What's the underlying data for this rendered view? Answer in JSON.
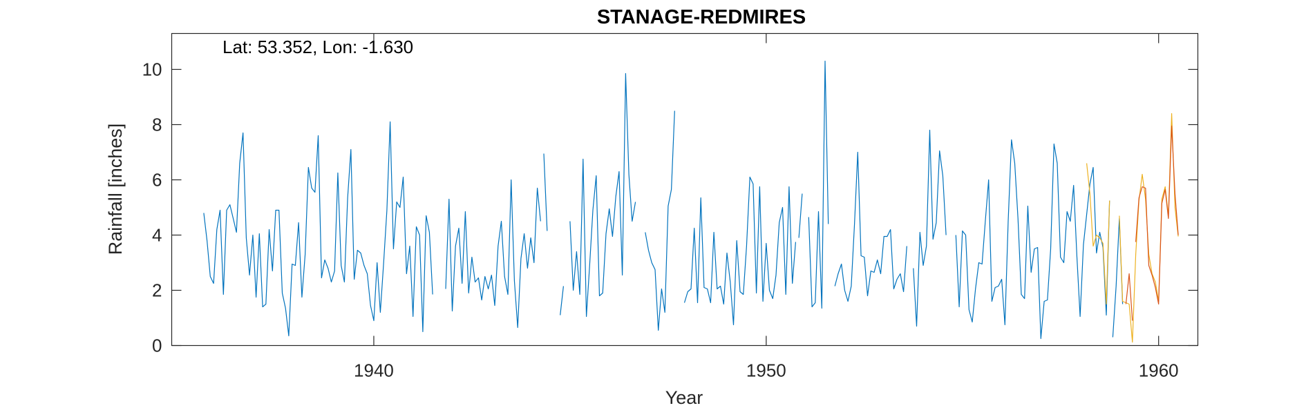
{
  "chart_data": {
    "type": "line",
    "title": "STANAGE-REDMIRES",
    "annotation": "Lat: 53.352, Lon: -1.630",
    "xlabel": "Year",
    "ylabel": "Rainfall [inches]",
    "xlim": [
      1934.85,
      1961.0
    ],
    "ylim": [
      0,
      11.3
    ],
    "xticks": [
      1940,
      1950,
      1960
    ],
    "yticks": [
      0,
      2,
      4,
      6,
      8,
      10
    ],
    "grid": false,
    "colors": {
      "observed": "#0072BD",
      "yellow": "#EDB120",
      "orange": "#D95319"
    },
    "series": [
      {
        "color": "#0072BD",
        "segments": [
          {
            "x": [
              1935.667,
              1935.75,
              1935.833,
              1935.917,
              1936.0,
              1936.083,
              1936.167,
              1936.25,
              1936.333,
              1936.417,
              1936.5,
              1936.583,
              1936.667,
              1936.75,
              1936.833,
              1936.917,
              1937.0,
              1937.083,
              1937.167,
              1937.25,
              1937.333,
              1937.417,
              1937.5,
              1937.583,
              1937.667,
              1937.75,
              1937.833,
              1937.917,
              1938.0,
              1938.083,
              1938.167,
              1938.25,
              1938.333,
              1938.417,
              1938.5,
              1938.583,
              1938.667,
              1938.75,
              1938.833,
              1938.917,
              1939.0,
              1939.083,
              1939.167,
              1939.25,
              1939.333,
              1939.417,
              1939.5,
              1939.583,
              1939.667,
              1939.75,
              1939.833,
              1939.917,
              1940.0,
              1940.083,
              1940.167,
              1940.25,
              1940.333,
              1940.417,
              1940.5,
              1940.583,
              1940.667,
              1940.75,
              1940.833,
              1940.917,
              1941.0,
              1941.083,
              1941.167,
              1941.25,
              1941.333,
              1941.417,
              1941.5
            ],
            "y": [
              4.8,
              3.8,
              2.5,
              2.25,
              4.2,
              4.9,
              1.85,
              4.9,
              5.1,
              4.6,
              4.1,
              6.6,
              7.7,
              3.9,
              2.55,
              4.0,
              1.75,
              4.05,
              1.4,
              1.5,
              4.2,
              2.7,
              4.9,
              4.9,
              1.9,
              1.35,
              0.35,
              2.95,
              2.9,
              4.45,
              1.75,
              3.3,
              6.45,
              5.7,
              5.55,
              7.6,
              2.45,
              3.1,
              2.8,
              2.3,
              2.7,
              6.25,
              2.9,
              2.3,
              5.35,
              7.1,
              2.4,
              3.45,
              3.35,
              2.9,
              2.6,
              1.45,
              0.9,
              3.0,
              1.2,
              3.0,
              4.9,
              8.1,
              3.5,
              5.2,
              5.0,
              6.1,
              2.6,
              3.6,
              1.05,
              4.3,
              4.0,
              0.5,
              4.7,
              4.1,
              1.85
            ]
          },
          {
            "x": [
              1941.833,
              1941.917,
              1942.0,
              1942.083,
              1942.167,
              1942.25,
              1942.333,
              1942.417,
              1942.5,
              1942.583,
              1942.667,
              1942.75,
              1942.833,
              1942.917,
              1943.0,
              1943.083,
              1943.167,
              1943.25,
              1943.333,
              1943.417,
              1943.5,
              1943.583,
              1943.667,
              1943.75,
              1943.833,
              1943.917,
              1944.0,
              1944.083,
              1944.167,
              1944.25
            ],
            "y": [
              2.05,
              5.3,
              1.25,
              3.6,
              4.25,
              2.25,
              4.85,
              1.9,
              3.2,
              2.3,
              2.45,
              1.65,
              2.5,
              2.05,
              2.55,
              1.45,
              3.6,
              4.5,
              2.5,
              1.85,
              6.0,
              2.35,
              0.65,
              3.15,
              4.05,
              2.8,
              3.9,
              3.0,
              5.7,
              4.5
            ]
          },
          {
            "x": [
              1944.333,
              1944.417
            ],
            "y": [
              6.95,
              4.15
            ]
          },
          {
            "x": [
              1944.75,
              1944.833
            ],
            "y": [
              1.1,
              2.15
            ]
          },
          {
            "x": [
              1945.0,
              1945.083,
              1945.167,
              1945.25,
              1945.333,
              1945.417,
              1945.5,
              1945.583,
              1945.667,
              1945.75,
              1945.833,
              1945.917,
              1946.0,
              1946.083,
              1946.167,
              1946.25,
              1946.333,
              1946.417,
              1946.5,
              1946.583,
              1946.667
            ],
            "y": [
              4.5,
              2.0,
              3.4,
              1.85,
              6.75,
              1.05,
              2.9,
              4.9,
              6.15,
              1.8,
              1.9,
              4.05,
              4.95,
              3.95,
              5.4,
              6.3,
              2.55,
              9.85,
              6.2,
              4.5,
              5.2
            ]
          },
          {
            "x": [
              1946.917,
              1947.0,
              1947.083,
              1947.167,
              1947.25,
              1947.333,
              1947.417,
              1947.5,
              1947.583,
              1947.667,
              1947.75
            ],
            "y": [
              4.1,
              3.45,
              3.0,
              2.75,
              0.55,
              2.05,
              1.2,
              5.05,
              5.65,
              8.5,
              null
            ]
          },
          {
            "x": [
              1947.917,
              1948.0,
              1948.083,
              1948.167,
              1948.25,
              1948.333,
              1948.417,
              1948.5,
              1948.583,
              1948.667,
              1948.75,
              1948.833,
              1948.917,
              1949.0,
              1949.083,
              1949.167,
              1949.25,
              1949.333,
              1949.417,
              1949.5,
              1949.583,
              1949.667,
              1949.75,
              1949.833,
              1949.917,
              1950.0,
              1950.083,
              1950.167,
              1950.25,
              1950.333,
              1950.417,
              1950.5,
              1950.583,
              1950.667,
              1950.75
            ],
            "y": [
              1.55,
              1.95,
              2.05,
              4.25,
              1.55,
              5.35,
              2.1,
              2.05,
              1.55,
              4.1,
              2.05,
              2.15,
              1.5,
              3.35,
              2.3,
              0.75,
              3.8,
              1.95,
              1.85,
              3.6,
              6.1,
              5.85,
              1.9,
              5.75,
              1.6,
              3.7,
              2.0,
              1.7,
              2.55,
              4.45,
              5.0,
              1.85,
              5.75,
              2.25,
              3.75
            ]
          },
          {
            "x": [
              1950.833,
              1950.917
            ],
            "y": [
              3.9,
              5.5
            ]
          },
          {
            "x": [
              1951.083,
              1951.167,
              1951.25,
              1951.333,
              1951.417,
              1951.5,
              1951.583
            ],
            "y": [
              4.65,
              1.4,
              1.55,
              4.85,
              1.35,
              10.3,
              4.4
            ]
          },
          {
            "x": [
              1951.75,
              1951.833,
              1951.917,
              1952.0,
              1952.083,
              1952.167,
              1952.25,
              1952.333,
              1952.417,
              1952.5,
              1952.583,
              1952.667,
              1952.75,
              1952.833,
              1952.917,
              1953.0,
              1953.083,
              1953.167,
              1953.25,
              1953.333,
              1953.417,
              1953.5,
              1953.583,
              1953.667,
              1953.75,
              1953.833,
              1953.917,
              1954.0,
              1954.083,
              1954.167,
              1954.25,
              1954.333,
              1954.417,
              1954.5,
              1954.583
            ],
            "y": [
              2.15,
              2.6,
              2.95,
              2.0,
              1.6,
              2.15,
              4.4,
              7.0,
              3.25,
              3.2,
              1.8,
              2.7,
              2.65,
              3.1,
              2.6,
              3.95,
              3.95,
              4.2,
              2.05,
              2.4,
              2.6,
              1.95,
              3.6,
              null,
              2.8,
              0.7,
              4.1,
              2.9,
              3.6,
              7.8,
              3.85,
              4.45,
              7.05,
              6.15,
              4.0
            ]
          },
          {
            "x": [
              1954.833,
              1954.917,
              1955.0,
              1955.083,
              1955.167,
              1955.25,
              1955.333,
              1955.417,
              1955.5,
              1955.583,
              1955.667,
              1955.75,
              1955.833,
              1955.917,
              1956.0,
              1956.083,
              1956.167,
              1956.25,
              1956.333,
              1956.417,
              1956.5,
              1956.583,
              1956.667,
              1956.75,
              1956.833,
              1956.917,
              1957.0,
              1957.083,
              1957.167,
              1957.25,
              1957.333,
              1957.417,
              1957.5,
              1957.583,
              1957.667,
              1957.75,
              1957.833,
              1957.917,
              1958.0,
              1958.083,
              1958.167,
              1958.25,
              1958.333,
              1958.417,
              1958.5,
              1958.583,
              1958.667,
              1958.75
            ],
            "y": [
              4.0,
              1.4,
              4.15,
              4.0,
              1.3,
              0.85,
              2.05,
              3.0,
              2.95,
              4.5,
              6.0,
              1.6,
              2.1,
              2.15,
              2.4,
              0.75,
              4.5,
              7.45,
              6.6,
              4.6,
              1.85,
              1.7,
              5.05,
              2.65,
              3.5,
              3.55,
              0.25,
              1.6,
              1.65,
              3.5,
              7.3,
              6.6,
              3.2,
              3.0,
              4.85,
              4.5,
              5.8,
              3.25,
              1.05,
              3.65,
              4.75,
              5.85,
              6.45,
              3.35,
              4.1,
              3.55,
              1.1,
              5.25
            ]
          },
          {
            "x": [
              1958.833,
              1958.917,
              1959.0,
              1959.083
            ],
            "y": [
              0.3,
              2.15,
              4.6,
              1.5
            ]
          }
        ]
      },
      {
        "color": "#EDB120",
        "segments": [
          {
            "x": [
              1958.167,
              1958.25,
              1958.333,
              1958.417,
              1958.5,
              1958.583,
              1958.667,
              1958.75
            ],
            "y": [
              6.6,
              5.5,
              3.6,
              4.0,
              3.9,
              3.7,
              1.5,
              5.25
            ]
          },
          {
            "x": [
              1959.0,
              1959.083,
              1959.167,
              1959.25,
              1959.333,
              1959.417,
              1959.5,
              1959.583,
              1959.667,
              1959.75,
              1959.833,
              1959.917,
              1960.0,
              1960.083,
              1960.167,
              1960.25,
              1960.333,
              1960.417,
              1960.5
            ],
            "y": [
              4.7,
              1.6,
              1.55,
              1.5,
              0.12,
              3.3,
              5.25,
              6.2,
              5.3,
              3.3,
              2.6,
              2.3,
              1.6,
              5.3,
              5.75,
              4.7,
              8.4,
              5.0,
              3.95
            ]
          }
        ]
      },
      {
        "color": "#D95319",
        "segments": [
          {
            "x": [
              1959.167,
              1959.25,
              1959.333
            ],
            "y": [
              1.5,
              2.6,
              0.9
            ]
          },
          {
            "x": [
              1959.417,
              1959.5,
              1959.583,
              1959.667,
              1959.75,
              1959.833,
              1959.917,
              1960.0,
              1960.083,
              1960.167,
              1960.25,
              1960.333,
              1960.417,
              1960.5
            ],
            "y": [
              3.75,
              5.35,
              5.75,
              5.7,
              2.9,
              2.55,
              2.1,
              1.5,
              5.15,
              5.65,
              4.6,
              7.95,
              5.5,
              4.0
            ]
          }
        ]
      }
    ]
  }
}
